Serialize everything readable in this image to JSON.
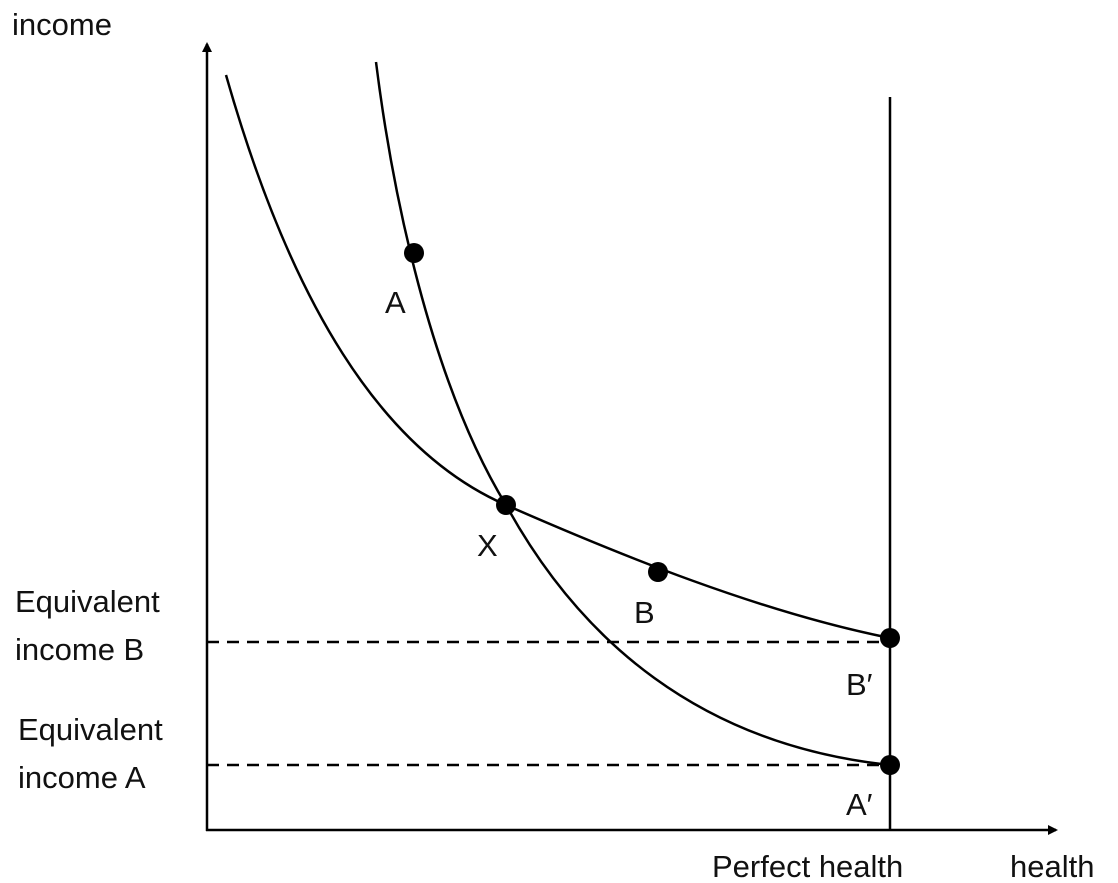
{
  "axes": {
    "y_label": "income",
    "x_label": "health",
    "perfect_health": "Perfect health"
  },
  "points": [
    {
      "label": "A"
    },
    {
      "label": "X"
    },
    {
      "label": "B"
    },
    {
      "label": "B′"
    },
    {
      "label": "A′"
    }
  ],
  "equivalent_incomes": [
    {
      "lines": [
        "Equivalent",
        "income B"
      ]
    },
    {
      "lines": [
        "Equivalent",
        "income A"
      ]
    }
  ]
}
